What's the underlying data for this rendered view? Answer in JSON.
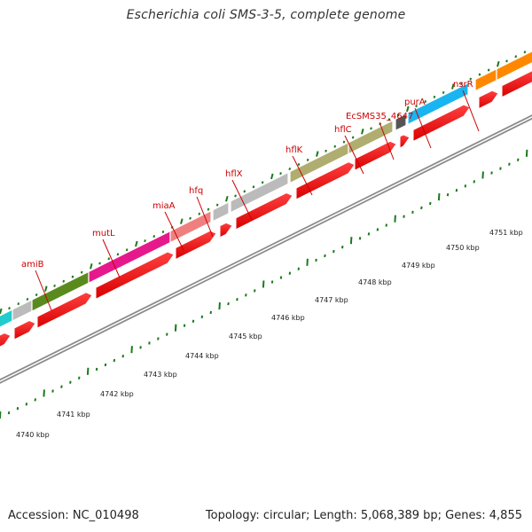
{
  "title": "Escherichia coli SMS-3-5, complete genome",
  "footer": {
    "accession": "Accession: NC_010498",
    "topology": "Topology: circular; Length: 5,068,389 bp; Genes: 4,855"
  },
  "colors": {
    "cds": "#ff0000",
    "label": "#cc0000",
    "tick": "#1a7a1a",
    "backbone": "#9a9a9a"
  },
  "scale_labels": [
    "4740 kbp",
    "4741 kbp",
    "4742 kbp",
    "4743 kbp",
    "4744 kbp",
    "4745 kbp",
    "4746 kbp",
    "4747 kbp",
    "4748 kbp",
    "4749 kbp",
    "4750 kbp",
    "4751 kbp"
  ],
  "gene_labels": [
    "amiB",
    "mutL",
    "miaA",
    "hfq",
    "hflX",
    "hflK",
    "hflC",
    "EcSMS35_4647",
    "purA",
    "nsrR"
  ],
  "feature_colors": [
    "#22cccc",
    "#bbbbbb",
    "#5a8a1e",
    "#e6198c",
    "#f08080",
    "#bbbbbb",
    "#bbbbbb",
    "#b0ad70",
    "#b0ad70",
    "#555555",
    "#19b5f0",
    "#ff8800",
    "#ff8800"
  ]
}
